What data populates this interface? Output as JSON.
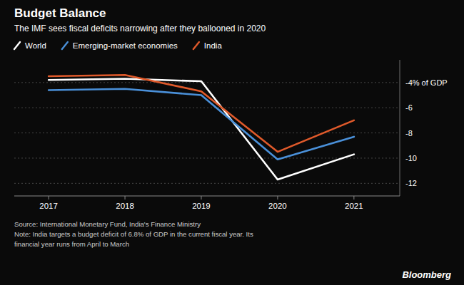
{
  "chart_data": {
    "type": "line",
    "title": "Budget Balance",
    "subtitle": "The IMF sees fiscal deficits narrowing after they ballooned in 2020",
    "annotations": [
      "Source: International Monetary Fund, India's Finance Ministry\nNote: India targets a budget deficit of 6.8% of GDP in the current fiscal year. Its\nfinancial year runs from April to March",
      "Bloomberg"
    ],
    "x": [
      2017,
      2018,
      2019,
      2020,
      2021
    ],
    "series": [
      {
        "name": "World",
        "color": "#ffffff",
        "values": [
          -3.8,
          -3.7,
          -3.9,
          -11.7,
          -9.7
        ]
      },
      {
        "name": "Emerging-market economies",
        "color": "#4a90d9",
        "values": [
          -4.6,
          -4.5,
          -5.0,
          -10.1,
          -8.3
        ]
      },
      {
        "name": "India",
        "color": "#e05a2b",
        "values": [
          -3.5,
          -3.4,
          -4.7,
          -9.5,
          -7.0
        ]
      }
    ],
    "xlim": [
      2016.55,
      2021.6
    ],
    "xticks": [
      2017,
      2018,
      2019,
      2020,
      2021
    ],
    "ylim": [
      -13.0,
      -2.2
    ],
    "yticks": [
      {
        "value": -4,
        "label": "-4% of GDP"
      },
      -6,
      -8,
      -10,
      -12
    ],
    "grid": true,
    "legend": "top"
  }
}
